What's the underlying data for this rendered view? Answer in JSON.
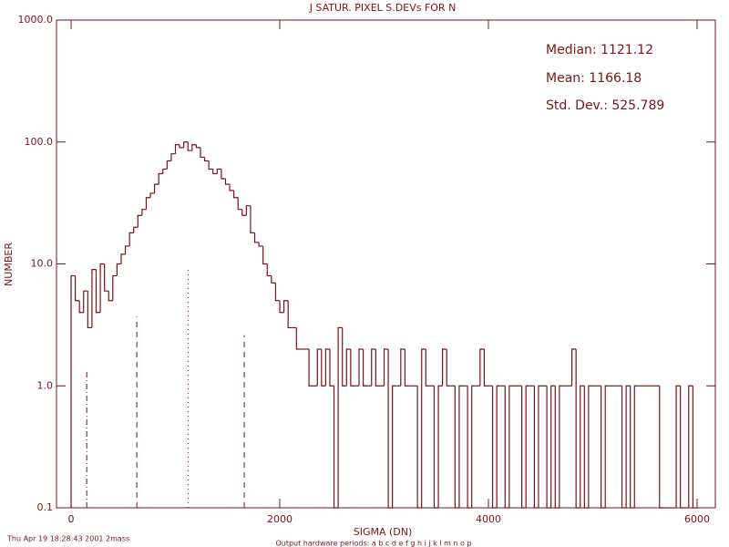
{
  "chart_data": {
    "type": "histogram",
    "title": "J SATUR. PIXEL S.DEVs FOR N",
    "xlabel": "SIGMA (DN)",
    "ylabel": "NUMBER",
    "stats": [
      "Median:  1121.12",
      "Mean:  1166.18",
      "Std. Dev.:  525.789"
    ],
    "timestamp": "Thu Apr 19 18:28:43 2001 2mass",
    "footer": "Output hardware periods: a b c d e f g h i j k l m n o p",
    "color": "#7a1414",
    "log_y": true,
    "xlim": [
      -140,
      6175
    ],
    "ylim": [
      0.1,
      1000
    ],
    "xticks": [
      0,
      2000,
      4000,
      6000
    ],
    "yticks": [
      0.1,
      {
        "value": 1,
        "label": "1.0"
      },
      {
        "value": 10,
        "label": "10.0"
      },
      {
        "value": 100,
        "label": "100.0"
      },
      {
        "value": 1000,
        "label": "1000.0"
      }
    ],
    "bins": [
      0,
      40,
      80,
      120,
      160,
      200,
      240,
      280,
      320,
      360,
      400,
      440,
      480,
      520,
      560,
      600,
      640,
      680,
      720,
      760,
      800,
      840,
      880,
      920,
      960,
      1000,
      1040,
      1080,
      1120,
      1160,
      1200,
      1240,
      1280,
      1320,
      1360,
      1400,
      1440,
      1480,
      1520,
      1560,
      1600,
      1640,
      1680,
      1720,
      1760,
      1800,
      1840,
      1880,
      1920,
      1960,
      2000,
      2040,
      2080,
      2120,
      2160,
      2200,
      2240,
      2280,
      2320,
      2360,
      2400,
      2440,
      2480,
      2520,
      2560,
      2600,
      2640,
      2680,
      2720,
      2760,
      2800,
      2840,
      2880,
      2920,
      2960,
      3000,
      3040,
      3080,
      3120,
      3160,
      3200,
      3240,
      3280,
      3320,
      3360,
      3400,
      3440,
      3480,
      3520,
      3560,
      3600,
      3640,
      3680,
      3720,
      3760,
      3800,
      3840,
      3880,
      3920,
      3960,
      4000,
      4040,
      4080,
      4120,
      4160,
      4200,
      4240,
      4280,
      4320,
      4360,
      4400,
      4440,
      4480,
      4520,
      4560,
      4600,
      4640,
      4680,
      4720,
      4760,
      4800,
      4840,
      4880,
      4920,
      4960,
      5000,
      5040,
      5080,
      5120,
      5160,
      5200,
      5240,
      5280,
      5320,
      5360,
      5400,
      5440,
      5480,
      5520,
      5560,
      5600,
      5640,
      5680,
      5720,
      5760,
      5800,
      5840,
      5880,
      5920,
      5960,
      6000
    ],
    "values": [
      8,
      5,
      4,
      6,
      3,
      9,
      4,
      10,
      6,
      5,
      8,
      10,
      12,
      14,
      18,
      20,
      25,
      28,
      35,
      38,
      45,
      55,
      60,
      70,
      80,
      95,
      90,
      100,
      85,
      95,
      90,
      75,
      70,
      60,
      55,
      60,
      50,
      45,
      40,
      35,
      28,
      25,
      30,
      18,
      15,
      14,
      10,
      8,
      7,
      5,
      4,
      5,
      3,
      3,
      2,
      2,
      2,
      1,
      1,
      2,
      1,
      2,
      1,
      0,
      3,
      1,
      2,
      1,
      1,
      2,
      1,
      1,
      2,
      1,
      1,
      2,
      0,
      1,
      1,
      2,
      1,
      1,
      1,
      0,
      2,
      1,
      1,
      0,
      1,
      2,
      1,
      1,
      0,
      1,
      1,
      0,
      1,
      1,
      2,
      1,
      1,
      0,
      1,
      1,
      0,
      1,
      1,
      1,
      0,
      1,
      1,
      0,
      1,
      1,
      0,
      1,
      0,
      1,
      1,
      1,
      2,
      0,
      1,
      0,
      1,
      1,
      1,
      0,
      1,
      1,
      1,
      1,
      0,
      1,
      0,
      1,
      1,
      1,
      1,
      1,
      1,
      0,
      0,
      0,
      0,
      1,
      0,
      0,
      1,
      0
    ],
    "markers": [
      {
        "x": 150,
        "height": 1.3,
        "style": "dashdot"
      },
      {
        "x": 630,
        "height": 3.7,
        "style": "dashed"
      },
      {
        "x": 1121,
        "height": 9.5,
        "style": "dotted"
      },
      {
        "x": 1660,
        "height": 2.6,
        "style": "dashed"
      }
    ]
  }
}
